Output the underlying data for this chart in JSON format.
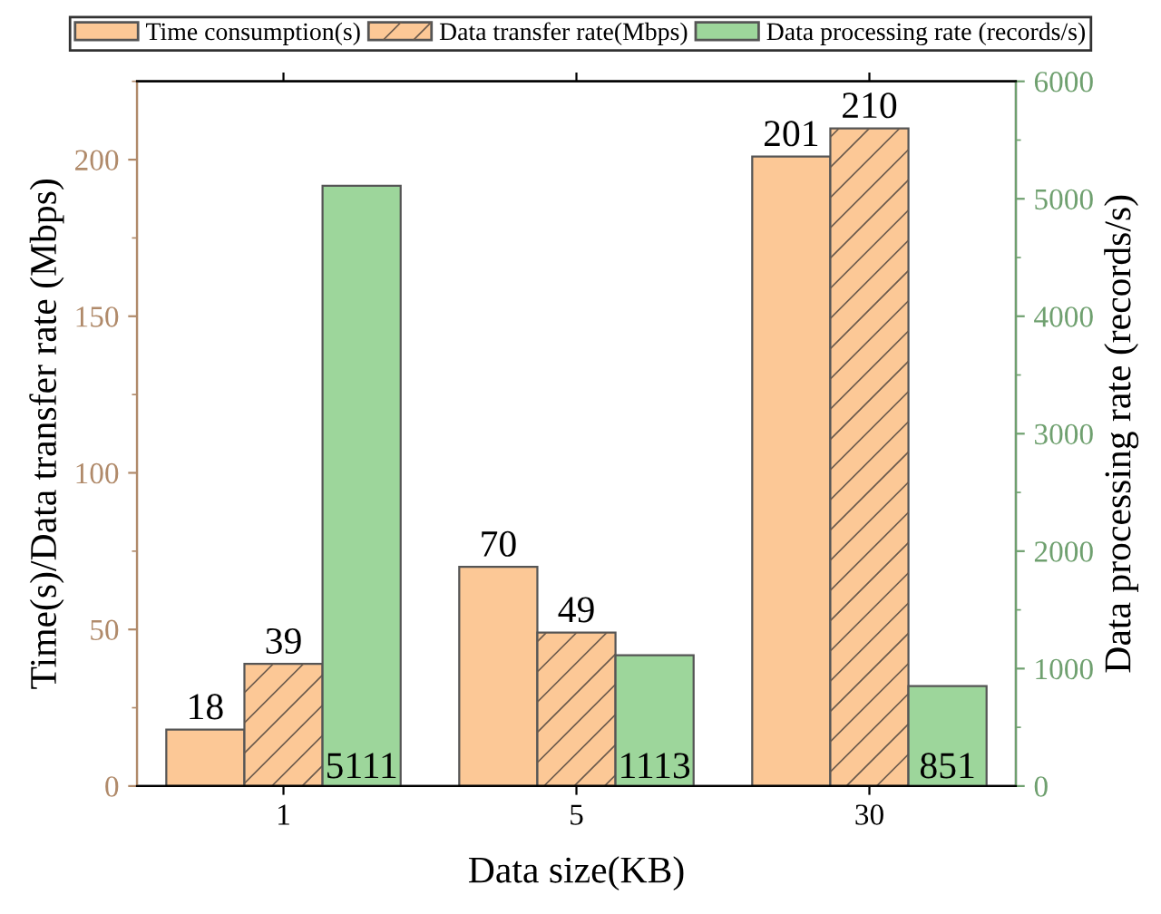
{
  "chart_data": {
    "type": "bar",
    "xlabel": "Data size(KB)",
    "ylabel": "Time(s)/Data transfer rate (Mbps)",
    "y2label": "Data processing rate (records/s)",
    "categories": [
      "1",
      "5",
      "30"
    ],
    "series": [
      {
        "name": "Time consumption(s)",
        "color": "#fcc896",
        "values": [
          18,
          70,
          201
        ]
      },
      {
        "name": "Data transfer rate(Mbps)",
        "color": "#fcc896",
        "values": [
          39,
          49,
          210
        ]
      },
      {
        "name": "Data processing rate (records/s)",
        "color": "#9dd69b",
        "values": [
          5111,
          1113,
          851
        ],
        "axis": "y2"
      }
    ],
    "ylim": [
      0,
      225
    ],
    "yticks": [
      0,
      50,
      100,
      150,
      200
    ],
    "y2lim": [
      0,
      6000
    ],
    "y2ticks": [
      0,
      1000,
      2000,
      3000,
      4000,
      5000,
      6000
    ],
    "data_labels": true,
    "grid": false,
    "legend": "top"
  }
}
